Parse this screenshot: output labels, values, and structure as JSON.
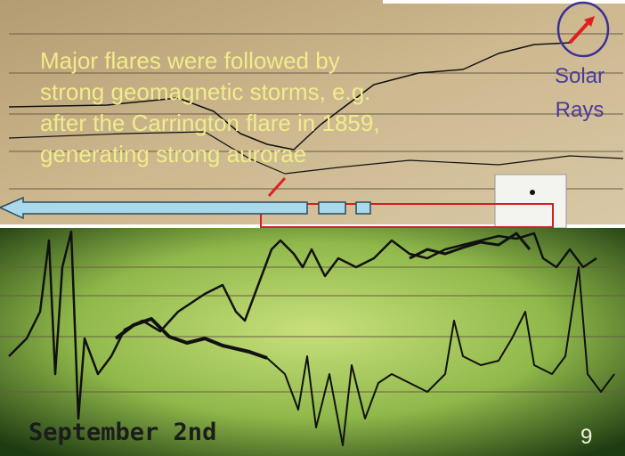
{
  "slide": {
    "text_lines": [
      "Major flares were followed by",
      "strong geomagnetic storms, e.g.",
      "after the Carrington flare in 1859,",
      "generating strong aurorae"
    ],
    "label_lines": [
      "Solar",
      "Rays"
    ],
    "caption": "September 2nd",
    "page_number": "9"
  }
}
